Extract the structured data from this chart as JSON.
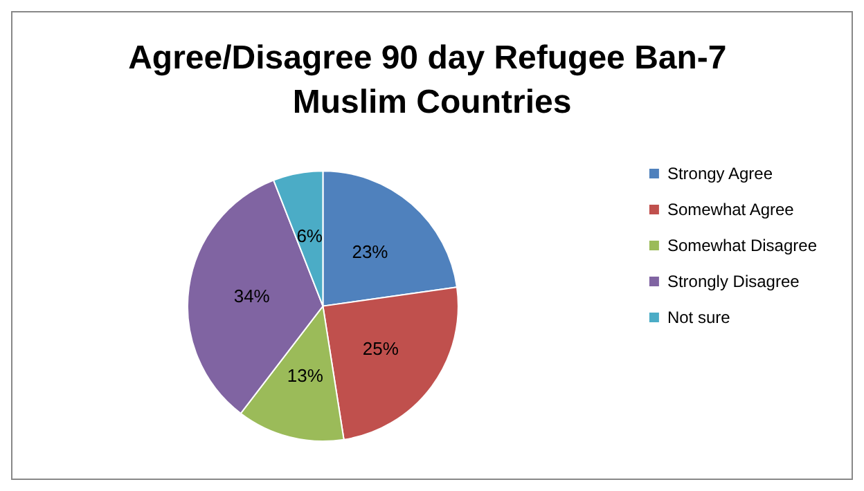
{
  "chart_data": {
    "type": "pie",
    "title": "Agree/Disagree 90 day Refugee Ban-7 Muslim Countries",
    "categories": [
      "Strongy Agree",
      "Somewhat Agree",
      "Somewhat Disagree",
      "Strongly Disagree",
      "Not sure"
    ],
    "values": [
      23,
      25,
      13,
      34,
      6
    ],
    "colors": [
      "#4f81bd",
      "#c0504d",
      "#9bbb59",
      "#8064a2",
      "#4bacc6"
    ],
    "value_labels": [
      "23%",
      "25%",
      "13%",
      "34%",
      "6%"
    ],
    "legend": "right"
  }
}
